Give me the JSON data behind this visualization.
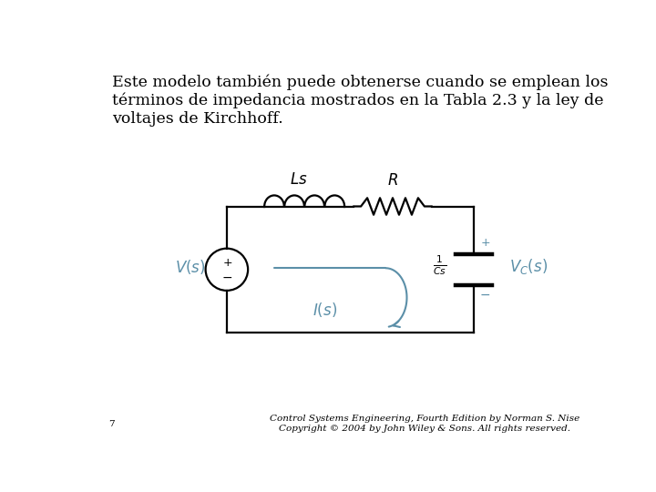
{
  "title_text": "Este modelo también puede obtenerse cuando se emplean los\ntérminos de impedancia mostrados en la Tabla 2.3 y la ley de\nvoltajes de Kirchhoff.",
  "footer_page": "7",
  "footer_right": "Control Systems Engineering, Fourth Edition by Norman S. Nise\nCopyright © 2004 by John Wiley & Sons. All rights reserved.",
  "circuit_color": "#000000",
  "label_color": "#5b8fa8",
  "bg_color": "#ffffff",
  "title_fontsize": 12.5,
  "label_fontsize": 12,
  "footer_fontsize": 7.5
}
